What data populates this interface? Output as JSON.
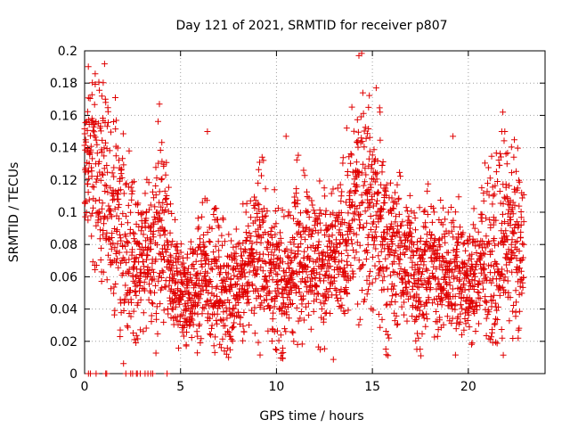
{
  "chart_data": {
    "type": "scatter",
    "title": "Day 121 of 2021, SRMTID for receiver p807",
    "xlabel": "GPS time / hours",
    "ylabel": "SRMTID / TECUs",
    "xlim": [
      0,
      24
    ],
    "ylim": [
      0,
      0.2
    ],
    "xticks": [
      0,
      5,
      10,
      15,
      20
    ],
    "xtick_labels": [
      "0",
      "5",
      "10",
      "15",
      "20"
    ],
    "yticks": [
      0,
      0.02,
      0.04,
      0.06,
      0.08,
      0.1,
      0.12,
      0.14,
      0.16,
      0.18,
      0.2
    ],
    "ytick_labels": [
      "0",
      "0.02",
      "0.04",
      "0.06",
      "0.08",
      "0.1",
      "0.12",
      "0.14",
      "0.16",
      "0.18",
      "0.2"
    ],
    "grid": true,
    "marker": "+",
    "series": [
      {
        "name": "SRMTID",
        "color": "#e00000",
        "envelope": {
          "description": "approximate per-hour median and spread of the dense point cloud (hour, median, spread)",
          "hours": [
            0.0,
            0.5,
            1.0,
            1.5,
            2.0,
            2.5,
            3.0,
            3.5,
            4.0,
            4.5,
            5.0,
            5.5,
            6.0,
            6.5,
            7.0,
            7.5,
            8.0,
            8.5,
            9.0,
            9.5,
            10.0,
            10.5,
            11.0,
            11.5,
            12.0,
            12.5,
            13.0,
            13.5,
            14.0,
            14.5,
            15.0,
            15.5,
            16.0,
            16.5,
            17.0,
            17.5,
            18.0,
            18.5,
            19.0,
            19.5,
            20.0,
            20.5,
            21.0,
            21.5,
            22.0,
            22.5,
            22.9
          ],
          "median": [
            0.13,
            0.13,
            0.11,
            0.1,
            0.08,
            0.07,
            0.07,
            0.07,
            0.09,
            0.06,
            0.05,
            0.05,
            0.055,
            0.06,
            0.055,
            0.05,
            0.05,
            0.065,
            0.08,
            0.075,
            0.06,
            0.05,
            0.075,
            0.08,
            0.07,
            0.065,
            0.065,
            0.08,
            0.1,
            0.115,
            0.1,
            0.09,
            0.075,
            0.075,
            0.07,
            0.06,
            0.07,
            0.065,
            0.06,
            0.065,
            0.055,
            0.065,
            0.07,
            0.075,
            0.09,
            0.08,
            0.08
          ],
          "spread": [
            0.025,
            0.03,
            0.03,
            0.03,
            0.03,
            0.025,
            0.02,
            0.025,
            0.03,
            0.02,
            0.015,
            0.015,
            0.02,
            0.02,
            0.02,
            0.02,
            0.018,
            0.02,
            0.025,
            0.025,
            0.02,
            0.02,
            0.025,
            0.025,
            0.02,
            0.025,
            0.02,
            0.025,
            0.03,
            0.035,
            0.03,
            0.03,
            0.025,
            0.02,
            0.02,
            0.02,
            0.02,
            0.02,
            0.02,
            0.02,
            0.015,
            0.02,
            0.025,
            0.03,
            0.03,
            0.025,
            0.02
          ]
        },
        "notable_points": [
          {
            "x": 14.3,
            "y": 0.197
          },
          {
            "x": 0.9,
            "y": 0.172
          },
          {
            "x": 15.2,
            "y": 0.177
          },
          {
            "x": 3.9,
            "y": 0.167
          },
          {
            "x": 21.8,
            "y": 0.162
          },
          {
            "x": 14.5,
            "y": 0.174
          },
          {
            "x": 14.8,
            "y": 0.165
          },
          {
            "x": 15.4,
            "y": 0.162
          },
          {
            "x": 6.4,
            "y": 0.15
          },
          {
            "x": 19.2,
            "y": 0.147
          },
          {
            "x": 10.5,
            "y": 0.147
          },
          {
            "x": 21.9,
            "y": 0.15
          },
          {
            "x": 7.5,
            "y": 0.01
          },
          {
            "x": 7.4,
            "y": 0.012
          },
          {
            "x": 11.1,
            "y": 0.018
          },
          {
            "x": 10.9,
            "y": 0.02
          },
          {
            "x": 17.4,
            "y": 0.022
          },
          {
            "x": 22.6,
            "y": 0.022
          },
          {
            "x": 20.2,
            "y": 0.019
          },
          {
            "x": 8.3,
            "y": 0.026
          }
        ],
        "zero_points_x": [
          0.2,
          0.3,
          0.6,
          1.1,
          1.15,
          2.15,
          2.4,
          2.5,
          2.7,
          2.75,
          2.9,
          3.15,
          3.3,
          3.45,
          3.55,
          4.3
        ]
      }
    ]
  }
}
